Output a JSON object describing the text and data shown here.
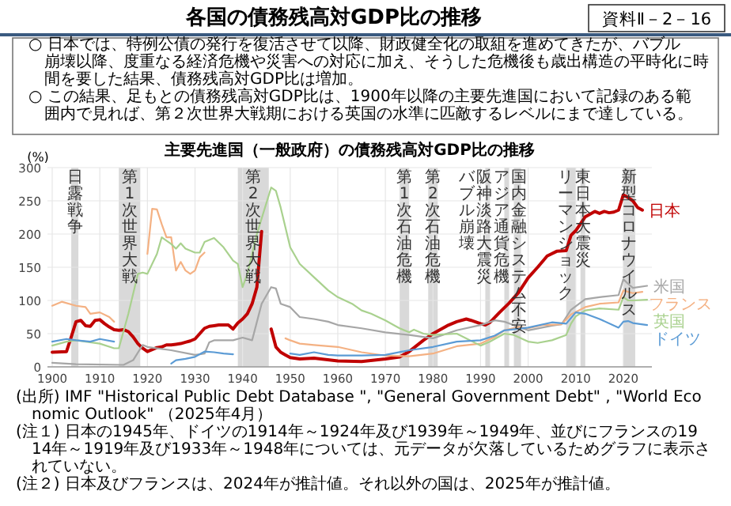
{
  "chart_data": {
    "type": "line",
    "title": "各国の債務残高対GDP比の推移",
    "subtitle": "主要先進国（一般政府）の債務残高対GDP比の推移",
    "ylabel": "(%)",
    "annotations": [
      "資料Ⅱ－2－16",
      "○ 日本では、特例公債の発行を復活させて以降、財政健全化の取組を進めてきたが、バブル崩壊以降、度重なる経済危機や災害への対応に加え、そうした危機後も歳出構造の平時化に時間を要した結果、債務残高対GDP比は増加。",
      "○ この結果、足もとの債務残高対GDP比は、1900年以降の主要先進国において記録のある範囲内で見れば、第２次世界大戦期における英国の水準に匹敵するレベルにまで達している。",
      "(出所) IMF \"Historical Public Debt Database \", \"General Government Debt\" , \"World Economic Outlook\" （2025年4月）",
      "(注１) 日本の1945年、ドイツの1914年～1924年及び1939年～1949年、並びにフランスの1914年～1919年及び1933年～1948年については、元データが欠落しているためグラフに表示されていない。",
      "(注２) 日本及びフランスは、2024年が推計値。それ以外の国は、2025年が推計値。"
    ],
    "xlim": [
      1899,
      2026
    ],
    "xticks": [
      1900,
      1910,
      1920,
      1930,
      1940,
      1950,
      1960,
      1970,
      1980,
      1990,
      2000,
      2010,
      2020
    ],
    "ylim": [
      0,
      300
    ],
    "yticks": [
      0,
      50,
      100,
      150,
      200,
      250,
      300
    ],
    "grid": true,
    "bands": [
      {
        "axis": "x",
        "from": 1904,
        "to": 1905.5,
        "label": "日露戦争",
        "color": "#d9d9d9"
      },
      {
        "axis": "x",
        "from": 1914,
        "to": 1918.5,
        "label": "第1次世界大戦",
        "color": "#d9d9d9"
      },
      {
        "axis": "x",
        "from": 1939,
        "to": 1945.5,
        "label": "第2次世界大戦",
        "color": "#d9d9d9"
      },
      {
        "axis": "x",
        "from": 1973,
        "to": 1975,
        "label": "第1次石油危機",
        "color": "#d9d9d9"
      },
      {
        "axis": "x",
        "from": 1979,
        "to": 1981,
        "label": "第2次石油危機",
        "color": "#d9d9d9"
      },
      {
        "axis": "x",
        "from": 1991,
        "to": 1992,
        "label": "バブル崩壊",
        "color": "#d9d9d9"
      },
      {
        "axis": "x",
        "from": 1995,
        "to": 1996,
        "label": "阪神淡路大震災",
        "color": "#d9d9d9"
      },
      {
        "axis": "x",
        "from": 1997,
        "to": 1998,
        "label": "アジア通貨危機",
        "color": "#d9d9d9"
      },
      {
        "axis": "x",
        "from": 1997.5,
        "to": 1998.5,
        "label": "国内金融システム不安",
        "color": "#d9d9d9"
      },
      {
        "axis": "x",
        "from": 2008,
        "to": 2010,
        "label": "リーマンショック",
        "color": "#d9d9d9"
      },
      {
        "axis": "x",
        "from": 2011,
        "to": 2012,
        "label": "東日本大震災",
        "color": "#d9d9d9"
      },
      {
        "axis": "x",
        "from": 2020,
        "to": 2022.5,
        "label": "新型コロナウイルス",
        "color": "#d9d9d9"
      }
    ],
    "series": [
      {
        "name": "日本",
        "color": "#c00000",
        "x": [
          1900,
          1903,
          1904,
          1905,
          1906,
          1907,
          1908,
          1909,
          1910,
          1911,
          1912,
          1913,
          1914,
          1915,
          1916,
          1917,
          1918,
          1919,
          1920,
          1921,
          1922,
          1923,
          1924,
          1925,
          1926,
          1927,
          1928,
          1929,
          1930,
          1931,
          1932,
          1933,
          1934,
          1935,
          1936,
          1937,
          1938,
          1939,
          1940,
          1941,
          1942,
          1943,
          1944,
          1945,
          1946,
          1947,
          1948,
          1949,
          1950,
          1952,
          1955,
          1960,
          1965,
          1970,
          1973,
          1975,
          1978,
          1980,
          1983,
          1985,
          1987,
          1988,
          1990,
          1991,
          1992,
          1994,
          1996,
          1998,
          2000,
          2002,
          2004,
          2006,
          2008,
          2009,
          2010,
          2012,
          2014,
          2015,
          2016,
          2017,
          2018,
          2019,
          2020,
          2021,
          2022,
          2023,
          2024
        ],
        "values": [
          22,
          23,
          45,
          68,
          70,
          62,
          61,
          70,
          71,
          65,
          60,
          56,
          55,
          56,
          53,
          45,
          35,
          28,
          23,
          26,
          29,
          30,
          33,
          33,
          34,
          35,
          37,
          39,
          42,
          50,
          58,
          61,
          62,
          63,
          63,
          63,
          57,
          66,
          72,
          80,
          95,
          120,
          204,
          null,
          57,
          30,
          22,
          18,
          14,
          12,
          13,
          9,
          8,
          12,
          15,
          23,
          40,
          50,
          62,
          68,
          72,
          70,
          65,
          63,
          67,
          82,
          96,
          112,
          134,
          150,
          167,
          174,
          175,
          198,
          205,
          226,
          234,
          231,
          234,
          232,
          233,
          236,
          259,
          255,
          250,
          240,
          236
        ]
      },
      {
        "name": "米国",
        "color": "#a6a6a6",
        "x": [
          1900,
          1905,
          1915,
          1917,
          1919,
          1920,
          1925,
          1930,
          1932,
          1933,
          1934,
          1936,
          1938,
          1940,
          1942,
          1944,
          1946,
          1947,
          1948,
          1950,
          1952,
          1955,
          1958,
          1960,
          1965,
          1970,
          1975,
          1980,
          1985,
          1990,
          1993,
          1995,
          2000,
          2005,
          2007,
          2009,
          2012,
          2015,
          2019,
          2020,
          2021,
          2022,
          2025
        ],
        "values": [
          6,
          4,
          3,
          10,
          33,
          30,
          25,
          18,
          20,
          37,
          40,
          40,
          40,
          44,
          40,
          95,
          120,
          118,
          95,
          90,
          75,
          72,
          68,
          63,
          58,
          52,
          48,
          43,
          55,
          63,
          70,
          68,
          55,
          62,
          64,
          86,
          102,
          105,
          108,
          132,
          125,
          119,
          122
        ]
      },
      {
        "name": "フランス",
        "color": "#f4b183",
        "x": [
          1900,
          1902,
          1905,
          1907,
          1908,
          1910,
          1912,
          1913,
          1914,
          1920,
          1921,
          1922,
          1923,
          1924,
          1925,
          1926,
          1927,
          1928,
          1929,
          1930,
          1931,
          1932,
          1933,
          1949,
          1950,
          1952,
          1955,
          1960,
          1965,
          1970,
          1975,
          1980,
          1985,
          1990,
          1993,
          1995,
          1998,
          2000,
          2003,
          2007,
          2009,
          2012,
          2015,
          2019,
          2020,
          2021,
          2022,
          2024
        ],
        "values": [
          92,
          98,
          92,
          90,
          80,
          82,
          75,
          68,
          null,
          170,
          238,
          237,
          215,
          195,
          195,
          145,
          158,
          145,
          140,
          145,
          165,
          172,
          null,
          43,
          40,
          35,
          33,
          30,
          22,
          17,
          16,
          20,
          31,
          35,
          45,
          55,
          60,
          58,
          63,
          64,
          79,
          90,
          95,
          97,
          115,
          113,
          111,
          113
        ]
      },
      {
        "name": "英国",
        "color": "#a9d18e",
        "x": [
          1900,
          1903,
          1905,
          1910,
          1913,
          1914,
          1916,
          1918,
          1919,
          1920,
          1922,
          1923,
          1925,
          1926,
          1927,
          1928,
          1930,
          1931,
          1932,
          1934,
          1936,
          1938,
          1939,
          1940,
          1941,
          1943,
          1946,
          1947,
          1948,
          1950,
          1952,
          1955,
          1958,
          1960,
          1963,
          1965,
          1967,
          1970,
          1972,
          1973,
          1975,
          1976,
          1978,
          1980,
          1985,
          1990,
          1992,
          1995,
          1997,
          2000,
          2002,
          2005,
          2008,
          2009,
          2010,
          2012,
          2015,
          2019,
          2020,
          2021,
          2022,
          2025
        ],
        "values": [
          32,
          38,
          40,
          35,
          28,
          28,
          80,
          140,
          142,
          140,
          170,
          195,
          185,
          178,
          186,
          178,
          172,
          172,
          188,
          194,
          180,
          160,
          155,
          120,
          140,
          200,
          270,
          265,
          240,
          180,
          155,
          135,
          115,
          105,
          95,
          85,
          80,
          70,
          62,
          58,
          52,
          56,
          50,
          48,
          50,
          32,
          38,
          50,
          48,
          38,
          36,
          40,
          48,
          65,
          76,
          85,
          88,
          86,
          105,
          100,
          100,
          101
        ]
      },
      {
        "name": "ドイツ",
        "color": "#5b9bd5",
        "x": [
          1900,
          1903,
          1905,
          1908,
          1910,
          1913,
          1914,
          1925,
          1926,
          1928,
          1930,
          1932,
          1934,
          1936,
          1938,
          1939,
          1950,
          1952,
          1955,
          1958,
          1960,
          1965,
          1970,
          1975,
          1980,
          1985,
          1990,
          1993,
          1995,
          2000,
          2005,
          2008,
          2010,
          2012,
          2015,
          2019,
          2020,
          2021,
          2022,
          2025
        ],
        "values": [
          38,
          42,
          40,
          38,
          42,
          38,
          null,
          5,
          10,
          12,
          15,
          23,
          22,
          20,
          19,
          null,
          20,
          18,
          22,
          18,
          17,
          17,
          18,
          25,
          30,
          38,
          40,
          47,
          55,
          59,
          67,
          65,
          82,
          80,
          72,
          59,
          68,
          69,
          66,
          63
        ]
      }
    ]
  }
}
